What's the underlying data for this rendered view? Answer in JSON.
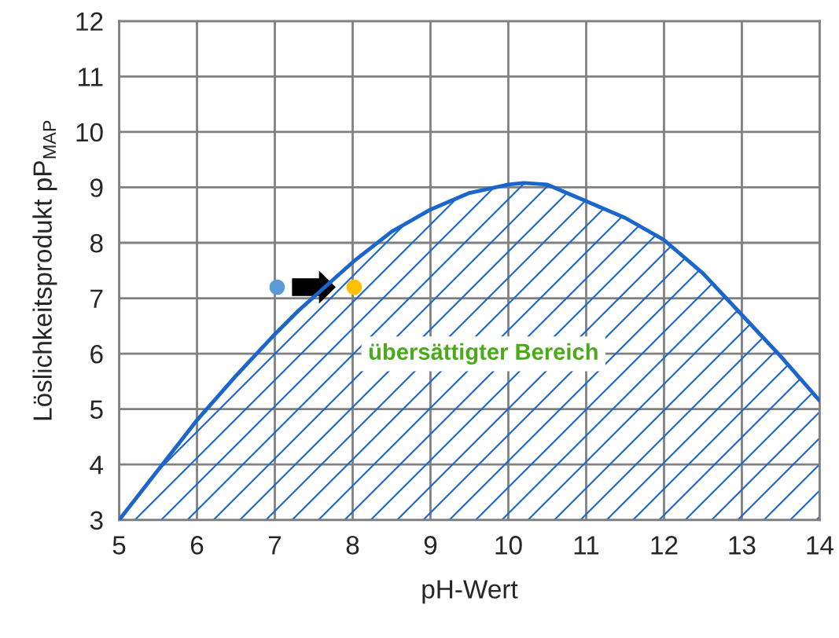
{
  "chart_data": {
    "type": "area",
    "xlabel": "pH-Wert",
    "ylabel": "Löslichkeitsprodukt pP$_{MAP}$",
    "xlim": [
      5,
      14
    ],
    "xticks": [
      5,
      6,
      7,
      8,
      9,
      10,
      11,
      12,
      13,
      14
    ],
    "ylim": [
      3,
      12
    ],
    "yticks": [
      3,
      4,
      5,
      6,
      7,
      8,
      9,
      10,
      11,
      12
    ],
    "grid": true,
    "series": [
      {
        "color": "#1a66cc",
        "x": [
          5,
          5.5,
          6,
          6.5,
          7,
          7.3,
          8,
          8.5,
          9,
          9.5,
          10,
          10.2,
          10.5,
          11,
          11.5,
          12,
          12.5,
          13,
          13.5,
          14
        ],
        "values": [
          3,
          3.9,
          4.8,
          5.6,
          6.35,
          6.77,
          7.65,
          8.2,
          8.6,
          8.9,
          9.05,
          9.08,
          9.05,
          8.75,
          8.45,
          8.05,
          7.45,
          6.7,
          5.95,
          5.15
        ]
      },
      {
        "type": "scatter",
        "x": [
          7.03,
          8.02
        ],
        "values": [
          7.2,
          7.2
        ],
        "colors": [
          "#5b9bd5",
          "#ffc000"
        ]
      }
    ],
    "annotations": [
      "übersättigter Bereich"
    ]
  }
}
